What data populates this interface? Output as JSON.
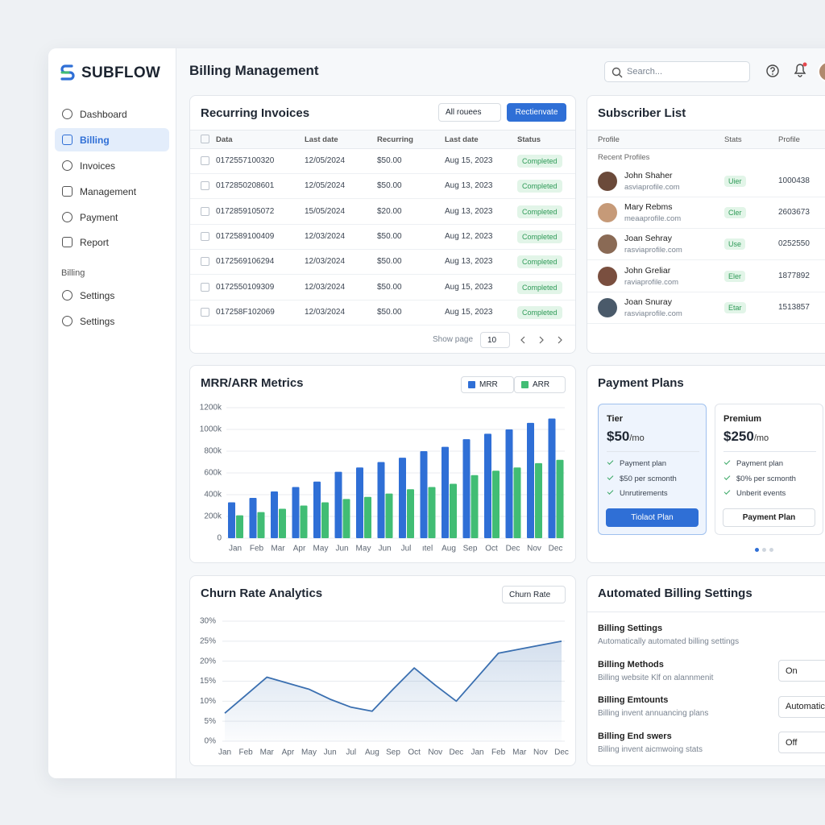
{
  "brand": "SUBFLOW",
  "nav": {
    "items": [
      "Dashboard",
      "Billing",
      "Invoices",
      "Management",
      "Payment",
      "Report"
    ],
    "section": "Billing",
    "sub_items": [
      "Settings",
      "Settings"
    ]
  },
  "header": {
    "title": "Billing Management",
    "search": "Search..."
  },
  "invoices": {
    "title": "Recurring Invoices",
    "filter": "All rouees",
    "button": "Rectienvate",
    "columns": [
      "Data",
      "Last date",
      "Recurring",
      "Last date",
      "Status"
    ],
    "rows": [
      [
        "0172557100320",
        "12/05/2024",
        "$50.00",
        "Aug 15, 2023",
        "Completed"
      ],
      [
        "0172850208601",
        "12/05/2024",
        "$50.00",
        "Aug 13, 2023",
        "Completed"
      ],
      [
        "0172859105072",
        "15/05/2024",
        "$20.00",
        "Aug 13, 2023",
        "Completed"
      ],
      [
        "0172589100409",
        "12/03/2024",
        "$50.00",
        "Aug 12, 2023",
        "Completed"
      ],
      [
        "0172569106294",
        "12/03/2024",
        "$50.00",
        "Aug 13, 2023",
        "Completed"
      ],
      [
        "0172550109309",
        "12/03/2024",
        "$50.00",
        "Aug 15, 2023",
        "Completed"
      ],
      [
        "017258F102069",
        "12/03/2024",
        "$50.00",
        "Aug 15, 2023",
        "Completed"
      ]
    ],
    "footer": "Show page",
    "page_size": "10"
  },
  "subscribers": {
    "title": "Subscriber List",
    "columns": [
      "Profile",
      "Stats",
      "Profile"
    ],
    "section": "Recent Profiles",
    "rows": [
      [
        "John Shaher",
        "asviaprofile.com",
        "Uier",
        "1000438"
      ],
      [
        "Mary Rebms",
        "meaaprofile.com",
        "Cler",
        "2603673"
      ],
      [
        "Joan Sehray",
        "rasviaprofile.com",
        "Use",
        "0252550"
      ],
      [
        "John Greliar",
        "raviaprofile.com",
        "Eler",
        "1877892"
      ],
      [
        "Joan Snuray",
        "rasviaprofile.com",
        "Etar",
        "1513857"
      ]
    ]
  },
  "mrr_chart": {
    "type": "bar",
    "title": "MRR/ARR Metrics",
    "categories": [
      "Jan",
      "Feb",
      "Mar",
      "Apr",
      "May",
      "Jun",
      "May",
      "Jun",
      "Jul",
      "ıtel",
      "Aug",
      "Sep",
      "Oct",
      "Dec",
      "Nov",
      "Dec"
    ],
    "series": [
      {
        "name": "MRR",
        "color": "#2f6fd6",
        "values": [
          330,
          370,
          430,
          470,
          520,
          610,
          650,
          700,
          740,
          800,
          840,
          910,
          960,
          1000,
          1060,
          1100
        ]
      },
      {
        "name": "ARR",
        "color": "#41bd74",
        "values": [
          210,
          240,
          270,
          300,
          330,
          360,
          380,
          410,
          450,
          470,
          500,
          580,
          620,
          650,
          690,
          720
        ]
      }
    ],
    "ylim": [
      0,
      1200
    ],
    "yticks": [
      0,
      {
        "value": 200,
        "label": "200k"
      },
      {
        "value": 400,
        "label": "400k"
      },
      {
        "value": 600,
        "label": "600k"
      },
      {
        "value": 800,
        "label": "800k"
      },
      {
        "value": 1000,
        "label": "1000k"
      },
      {
        "value": 1200,
        "label": "1200k"
      }
    ],
    "grid": true
  },
  "churn_chart": {
    "type": "line",
    "title": "Churn Rate Analytics",
    "selector": "Churn Rate",
    "color": "#3a6fb0",
    "categories": [
      "Jan",
      "Feb",
      "Mar",
      "Apr",
      "May",
      "Jun",
      "Jul",
      "Aug",
      "Sep",
      "Oct",
      "Nov",
      "Dec",
      "Jan",
      "Feb",
      "Mar",
      "Nov",
      "Dec"
    ],
    "values": [
      7,
      11.5,
      16,
      14.5,
      13,
      10.5,
      8.5,
      7.5,
      13,
      18.3,
      14,
      10,
      16,
      22,
      23,
      24,
      25
    ],
    "ylim": [
      0,
      30
    ],
    "yticks": [
      {
        "value": 0,
        "label": "0%"
      },
      {
        "value": 5,
        "label": "5%"
      },
      {
        "value": 10,
        "label": "10%"
      },
      {
        "value": 15,
        "label": "15%"
      },
      {
        "value": 20,
        "label": "20%"
      },
      {
        "value": 25,
        "label": "25%"
      },
      {
        "value": 30,
        "label": "30%"
      }
    ],
    "grid": true
  },
  "plans": {
    "title": "Payment Plans",
    "items": [
      {
        "name": "Tier",
        "price": "$50",
        "period": "/mo",
        "features": [
          "Payment plan",
          "$50 per scmonth",
          "Unrutirements"
        ],
        "button": "Tiolaot Plan"
      },
      {
        "name": "Premium",
        "price": "$250",
        "period": "/mo",
        "features": [
          "Payment plan",
          "$0% per scmonth",
          "Unberit events"
        ],
        "button": "Payment Plan"
      }
    ]
  },
  "settings": {
    "title": "Automated Billing Settings",
    "items": [
      {
        "title": "Billing Settings",
        "desc": "Automatically automated billing settings"
      },
      {
        "title": "Billing Methods",
        "desc": "Billing website Klf on alannmenit",
        "control": "On"
      },
      {
        "title": "Billing Emtounts",
        "desc": "Billing invent annuancing plans",
        "control": "Automatic"
      },
      {
        "title": "Billing End swers",
        "desc": "Billing invent aicmwoing stats",
        "control": "Off"
      }
    ]
  }
}
